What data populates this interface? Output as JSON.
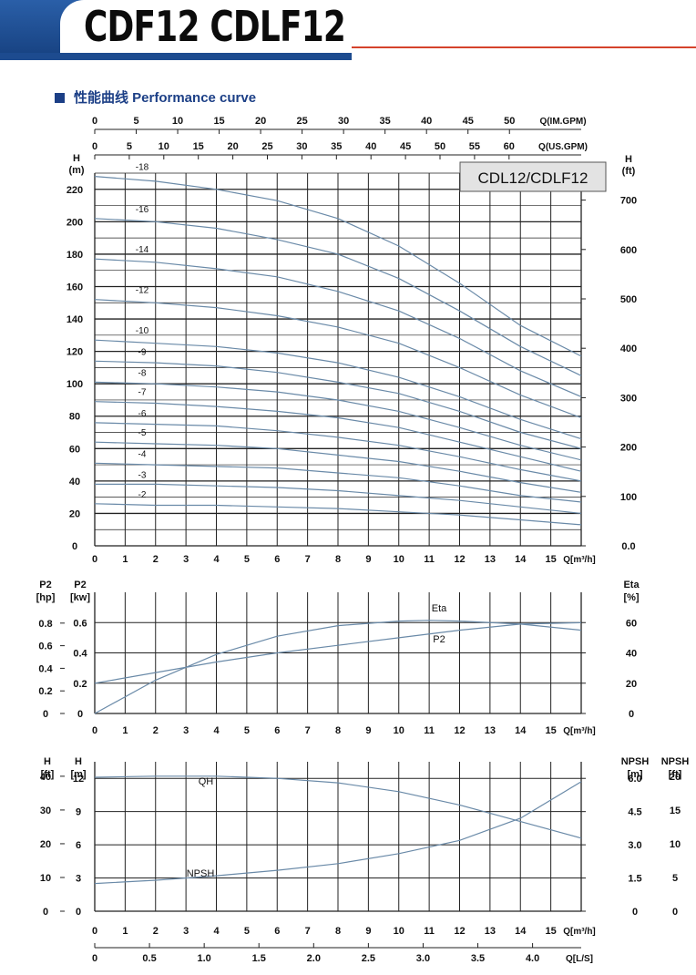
{
  "header": {
    "title": "CDF12 CDLF12"
  },
  "section": {
    "label": "性能曲线  Performance curve"
  },
  "colors": {
    "brand_blue": "#1d4b8f",
    "accent_red": "#d5422b",
    "curve": "#6a8aa8",
    "grid": "#222222"
  },
  "chart_data": [
    {
      "type": "line",
      "box_label": "CDL12/CDLF12",
      "x_label": "Q[m³/h]",
      "x_ticks": [
        "0",
        "1",
        "2",
        "3",
        "4",
        "5",
        "6",
        "7",
        "8",
        "9",
        "10",
        "11",
        "12",
        "13",
        "14",
        "15"
      ],
      "top_axis_im": {
        "label": "Q(IM.GPM)",
        "ticks": [
          "0",
          "5",
          "10",
          "15",
          "20",
          "25",
          "30",
          "35",
          "40",
          "45",
          "50"
        ]
      },
      "top_axis_us": {
        "label": "Q(US.GPM)",
        "ticks": [
          "0",
          "5",
          "10",
          "15",
          "20",
          "25",
          "30",
          "35",
          "40",
          "45",
          "50",
          "55",
          "60"
        ]
      },
      "y_left_label": [
        "H",
        "(m)"
      ],
      "y_left_ticks": [
        "0",
        "20",
        "40",
        "60",
        "80",
        "100",
        "120",
        "140",
        "160",
        "180",
        "200",
        "220"
      ],
      "y_right_label": [
        "H",
        "(ft)"
      ],
      "y_right_ticks": [
        "0.0",
        "100",
        "200",
        "300",
        "400",
        "500",
        "600",
        "700"
      ],
      "xlim": [
        0,
        16
      ],
      "ylim": [
        0,
        230
      ],
      "series": [
        {
          "name": "-18",
          "x": [
            0,
            2,
            4,
            6,
            8,
            10,
            12,
            14,
            16
          ],
          "values": [
            228,
            225,
            220,
            213,
            202,
            185,
            162,
            136,
            117
          ]
        },
        {
          "name": "-16",
          "x": [
            0,
            2,
            4,
            6,
            8,
            10,
            12,
            14,
            16
          ],
          "values": [
            202,
            200,
            196,
            189,
            180,
            165,
            145,
            123,
            105
          ]
        },
        {
          "name": "-14",
          "x": [
            0,
            2,
            4,
            6,
            8,
            10,
            12,
            14,
            16
          ],
          "values": [
            177,
            175,
            171,
            166,
            157,
            145,
            128,
            108,
            92
          ]
        },
        {
          "name": "-12",
          "x": [
            0,
            2,
            4,
            6,
            8,
            10,
            12,
            14,
            16
          ],
          "values": [
            152,
            150,
            147,
            142,
            135,
            125,
            110,
            93,
            79
          ]
        },
        {
          "name": "-10",
          "x": [
            0,
            2,
            4,
            6,
            8,
            10,
            12,
            14,
            16
          ],
          "values": [
            127,
            125,
            123,
            119,
            113,
            104,
            92,
            78,
            66
          ]
        },
        {
          "name": "-9",
          "x": [
            0,
            2,
            4,
            6,
            8,
            10,
            12,
            14,
            16
          ],
          "values": [
            114,
            113,
            111,
            107,
            101,
            94,
            83,
            70,
            60
          ]
        },
        {
          "name": "-8",
          "x": [
            0,
            2,
            4,
            6,
            8,
            10,
            12,
            14,
            16
          ],
          "values": [
            101,
            100,
            98,
            95,
            90,
            83,
            73,
            62,
            53
          ]
        },
        {
          "name": "-7",
          "x": [
            0,
            2,
            4,
            6,
            8,
            10,
            12,
            14,
            16
          ],
          "values": [
            89,
            88,
            86,
            83,
            79,
            73,
            64,
            55,
            46
          ]
        },
        {
          "name": "-6",
          "x": [
            0,
            2,
            4,
            6,
            8,
            10,
            12,
            14,
            16
          ],
          "values": [
            76,
            75,
            74,
            71,
            67,
            62,
            55,
            47,
            40
          ]
        },
        {
          "name": "-5",
          "x": [
            0,
            2,
            4,
            6,
            8,
            10,
            12,
            14,
            16
          ],
          "values": [
            64,
            63,
            62,
            60,
            56,
            52,
            46,
            39,
            33
          ]
        },
        {
          "name": "-4",
          "x": [
            0,
            2,
            4,
            6,
            8,
            10,
            12,
            14,
            16
          ],
          "values": [
            51,
            50,
            49,
            48,
            45,
            42,
            37,
            31,
            27
          ]
        },
        {
          "name": "-3",
          "x": [
            0,
            2,
            4,
            6,
            8,
            10,
            12,
            14,
            16
          ],
          "values": [
            38,
            38,
            37,
            36,
            34,
            31,
            28,
            24,
            20
          ]
        },
        {
          "name": "-2",
          "x": [
            0,
            2,
            4,
            6,
            8,
            10,
            12,
            14,
            16
          ],
          "values": [
            26,
            25,
            25,
            24,
            23,
            21,
            19,
            16,
            13
          ]
        }
      ]
    },
    {
      "type": "line",
      "x_label": "Q[m³/h]",
      "x_ticks": [
        "0",
        "1",
        "2",
        "3",
        "4",
        "5",
        "6",
        "7",
        "8",
        "9",
        "10",
        "11",
        "12",
        "13",
        "14",
        "15"
      ],
      "y_left_hp_label": [
        "P2",
        "[hp]"
      ],
      "y_left_hp_ticks": [
        "0",
        "0.2",
        "0.4",
        "0.6",
        "0.8"
      ],
      "y_left_kw_label": [
        "P2",
        "[kw]"
      ],
      "y_left_kw_ticks": [
        "0",
        "0.2",
        "0.4",
        "0.6"
      ],
      "y_right_label": [
        "Eta",
        "[%]"
      ],
      "y_right_ticks": [
        "0",
        "20",
        "40",
        "60"
      ],
      "xlim": [
        0,
        16
      ],
      "ylim_kw": [
        0,
        0.6
      ],
      "ylim_eta": [
        0,
        60
      ],
      "series": [
        {
          "name": "Eta",
          "unit": "%",
          "x": [
            0,
            2,
            4,
            6,
            8,
            10,
            11,
            12,
            14,
            16
          ],
          "values": [
            0,
            22,
            39,
            51,
            58,
            61,
            61.5,
            61,
            59,
            55
          ]
        },
        {
          "name": "P2",
          "unit": "kw",
          "x": [
            0,
            2,
            4,
            6,
            8,
            10,
            12,
            14,
            16
          ],
          "values": [
            0.2,
            0.27,
            0.34,
            0.4,
            0.45,
            0.5,
            0.55,
            0.59,
            0.6
          ]
        }
      ]
    },
    {
      "type": "line",
      "x_label": "Q[m³/h]",
      "x_ticks": [
        "0",
        "1",
        "2",
        "3",
        "4",
        "5",
        "6",
        "7",
        "8",
        "9",
        "10",
        "11",
        "12",
        "13",
        "14",
        "15"
      ],
      "x2_label": "Q[L/S]",
      "x2_ticks": [
        "0",
        "0.5",
        "1.0",
        "1.5",
        "2.0",
        "2.5",
        "3.0",
        "3.5",
        "4.0"
      ],
      "y_left_ft_label": [
        "H",
        "[ft]"
      ],
      "y_left_ft_ticks": [
        "0",
        "10",
        "20",
        "30",
        "40"
      ],
      "y_left_m_label": [
        "H",
        "[m]"
      ],
      "y_left_m_ticks": [
        "0",
        "3",
        "6",
        "9",
        "12"
      ],
      "y_right_m_label": [
        "NPSH",
        "[m]"
      ],
      "y_right_m_ticks": [
        "0",
        "1.5",
        "3.0",
        "4.5",
        "6.0"
      ],
      "y_right_ft_label": [
        "NPSH",
        "[ft]"
      ],
      "y_right_ft_ticks": [
        "0",
        "5",
        "10",
        "15",
        "20"
      ],
      "xlim": [
        0,
        16
      ],
      "ylim_m": [
        0,
        13.5
      ],
      "series": [
        {
          "name": "QH",
          "unit": "m",
          "x": [
            0,
            2,
            4,
            6,
            8,
            10,
            12,
            14,
            16
          ],
          "values": [
            12.1,
            12.2,
            12.2,
            12.0,
            11.6,
            10.8,
            9.6,
            8.1,
            6.6
          ]
        },
        {
          "name": "NPSH",
          "unit": "m",
          "x": [
            0,
            2,
            4,
            6,
            8,
            10,
            12,
            14,
            16
          ],
          "values": [
            1.25,
            1.4,
            1.6,
            1.85,
            2.15,
            2.6,
            3.2,
            4.2,
            5.85
          ]
        }
      ]
    }
  ]
}
